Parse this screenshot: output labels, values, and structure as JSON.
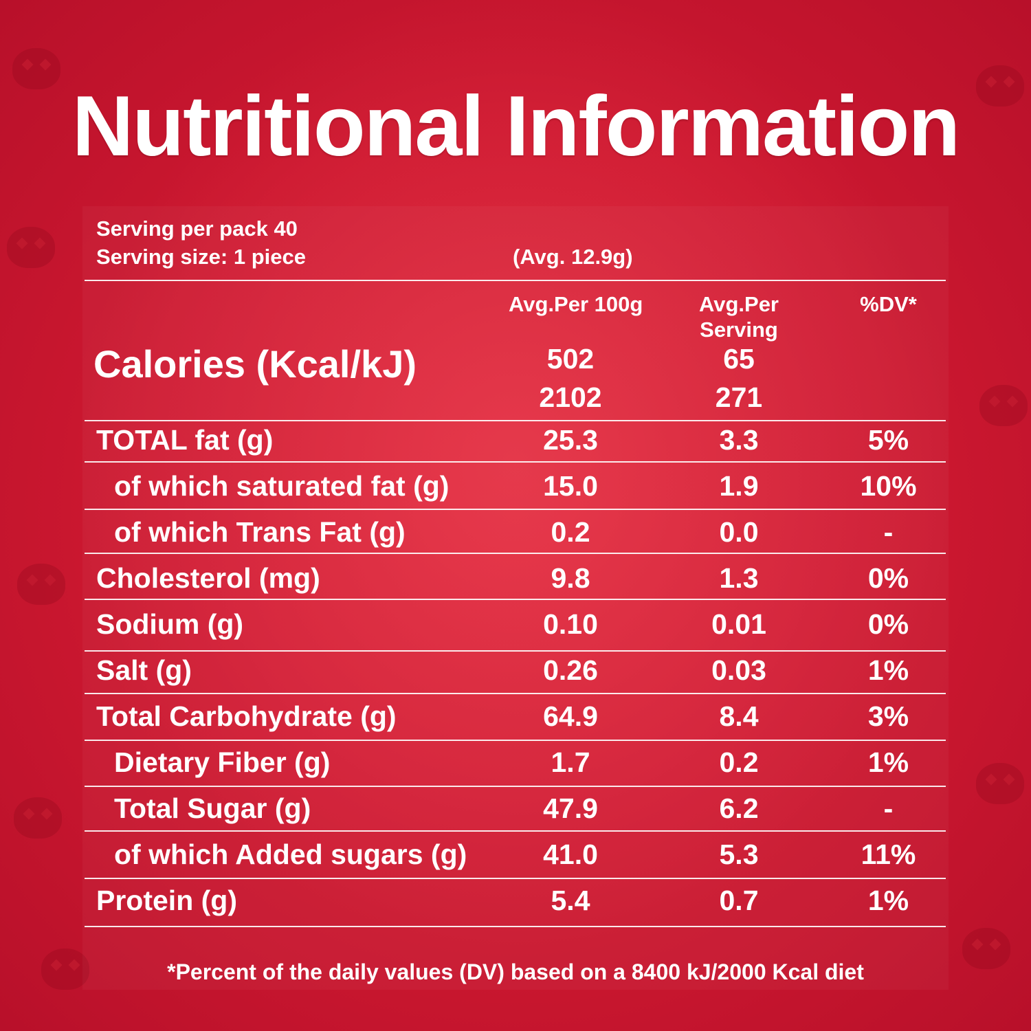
{
  "title": "Nutritional Information",
  "servings_per_pack": "Serving per pack 40",
  "serving_size": "Serving size: 1 piece",
  "serving_weight": "(Avg. 12.9g)",
  "columns": {
    "per_100g": "Avg.Per 100g",
    "per_serving_line1": "Avg.Per",
    "per_serving_line2": "Serving",
    "dv": "%DV*"
  },
  "calories": {
    "label": "Calories (Kcal/kJ)",
    "per_100g_kcal": "502",
    "per_100g_kj": "2102",
    "per_serving_kcal": "65",
    "per_serving_kj": "271"
  },
  "rows": [
    {
      "label": "TOTAL fat (g)",
      "per_100g": "25.3",
      "per_serving": "3.3",
      "dv": "5%"
    },
    {
      "label": "of which saturated fat (g)",
      "per_100g": "15.0",
      "per_serving": "1.9",
      "dv": "10%"
    },
    {
      "label": "of which Trans Fat (g)",
      "per_100g": "0.2",
      "per_serving": "0.0",
      "dv": "-"
    },
    {
      "label": "Cholesterol (mg)",
      "per_100g": "9.8",
      "per_serving": "1.3",
      "dv": "0%"
    },
    {
      "label": "Sodium (g)",
      "per_100g": "0.10",
      "per_serving": "0.01",
      "dv": "0%"
    },
    {
      "label": "Salt (g)",
      "per_100g": "0.26",
      "per_serving": "0.03",
      "dv": "1%"
    },
    {
      "label": "Total Carbohydrate (g)",
      "per_100g": "64.9",
      "per_serving": "8.4",
      "dv": "3%"
    },
    {
      "label": "Dietary Fiber (g)",
      "per_100g": "1.7",
      "per_serving": "0.2",
      "dv": "1%"
    },
    {
      "label": "Total Sugar (g)",
      "per_100g": "47.9",
      "per_serving": "6.2",
      "dv": "-"
    },
    {
      "label": "of which Added sugars (g)",
      "per_100g": "41.0",
      "per_serving": "5.3",
      "dv": "11%"
    },
    {
      "label": "Protein (g)",
      "per_100g": "5.4",
      "per_serving": "0.7",
      "dv": "1%"
    }
  ],
  "footnote": "*Percent of the daily values (DV) based on a  8400 kJ/2000 Kcal diet",
  "colors": {
    "background": "#cc1830",
    "text": "#ffffff"
  }
}
